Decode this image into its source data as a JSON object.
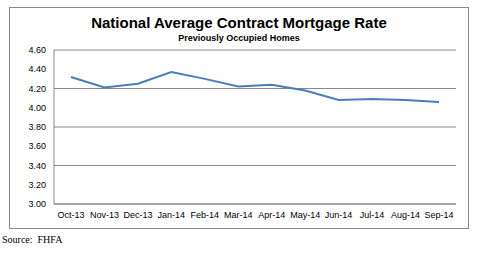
{
  "chart_data": {
    "type": "line",
    "title": "National Average Contract Mortgage Rate",
    "subtitle": "Previously Occupied Homes",
    "annotations": [
      "Source:  FHFA"
    ],
    "categories": [
      "Oct-13",
      "Nov-13",
      "Dec-13",
      "Jan-14",
      "Feb-14",
      "Mar-14",
      "Apr-14",
      "May-14",
      "Jun-14",
      "Jul-14",
      "Aug-14",
      "Sep-14"
    ],
    "values": [
      4.32,
      4.21,
      4.25,
      4.37,
      4.3,
      4.22,
      4.24,
      4.18,
      4.08,
      4.09,
      4.08,
      4.06
    ],
    "color": "#4a7ebb",
    "ylim": [
      3,
      4.6
    ],
    "yticks": [
      {
        "value": 3,
        "label": "3.00"
      },
      {
        "value": 3.2,
        "label": "3.20"
      },
      {
        "value": 3.4,
        "label": "3.40"
      },
      {
        "value": 3.6,
        "label": "3.60"
      },
      {
        "value": 3.8,
        "label": "3.80"
      },
      {
        "value": 4,
        "label": "4.00"
      },
      {
        "value": 4.2,
        "label": "4.20"
      },
      {
        "value": 4.4,
        "label": "4.40"
      },
      {
        "value": 4.6,
        "label": "4.60"
      }
    ],
    "grid": true
  }
}
